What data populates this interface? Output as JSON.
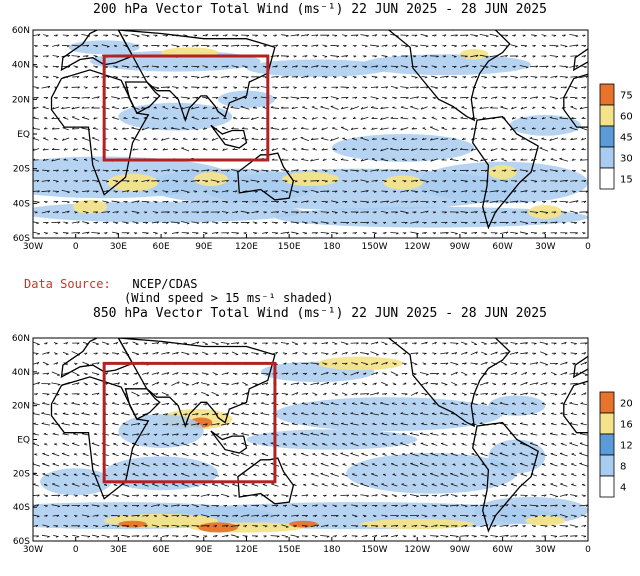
{
  "source": {
    "label": "Data Source:",
    "name": "NCEP/CDAS",
    "note": "(Wind speed > 15 ms⁻¹ shaded)"
  },
  "panels": [
    {
      "title": "200 hPa Vector Total Wind (ms⁻¹) 22 JUN 2025 - 28 JUN 2025",
      "lat_labels": [
        "60N",
        "40N",
        "20N",
        "EQ",
        "20S",
        "40S",
        "60S"
      ],
      "lon_labels": [
        "30W",
        "0",
        "30E",
        "60E",
        "90E",
        "120E",
        "150E",
        "180",
        "150W",
        "120W",
        "90W",
        "60W",
        "30W",
        "0"
      ],
      "colorbar": {
        "levels": [
          "15",
          "30",
          "45",
          "60",
          "75"
        ],
        "colors": [
          "#ffffff",
          "#a9cdf0",
          "#5b9bd8",
          "#f4e38a",
          "#e8732c"
        ]
      },
      "box": {
        "lon_from": "20E",
        "lon_to": "135E",
        "lat_from": "15S",
        "lat_to": "45N"
      }
    },
    {
      "title": "850 hPa Vector Total Wind (ms⁻¹) 22 JUN 2025 - 28 JUN 2025",
      "lat_labels": [
        "60N",
        "40N",
        "20N",
        "EQ",
        "20S",
        "40S",
        "60S"
      ],
      "lon_labels": [
        "30W",
        "0",
        "30E",
        "60E",
        "90E",
        "120E",
        "150E",
        "180",
        "150W",
        "120W",
        "90W",
        "60W",
        "30W",
        "0"
      ],
      "colorbar": {
        "levels": [
          "4",
          "8",
          "12",
          "16",
          "20"
        ],
        "colors": [
          "#ffffff",
          "#a9cdf0",
          "#5b9bd8",
          "#f4e38a",
          "#e8732c"
        ]
      },
      "box": {
        "lon_from": "20E",
        "lon_to": "140E",
        "lat_from": "25S",
        "lat_to": "45N"
      }
    }
  ]
}
